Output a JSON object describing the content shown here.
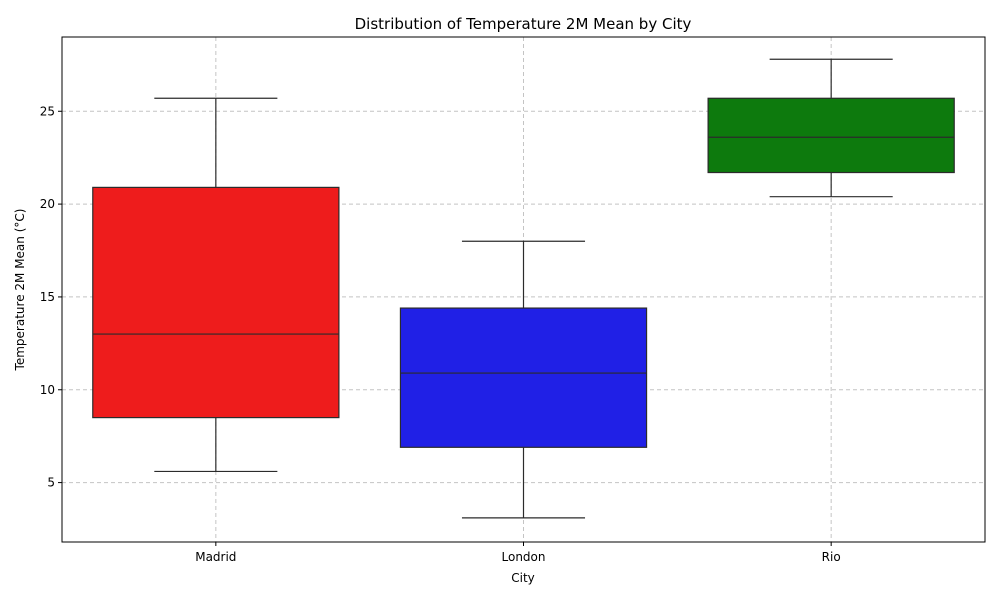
{
  "chart_data": {
    "type": "box",
    "title": "Distribution of Temperature 2M Mean by City",
    "xlabel": "City",
    "ylabel": "Temperature 2M Mean (°C)",
    "ylim": [
      1.8,
      29.0
    ],
    "yticks": [
      5,
      10,
      15,
      20,
      25
    ],
    "grid": true,
    "categories": [
      "Madrid",
      "London",
      "Rio"
    ],
    "series": [
      {
        "category": "Madrid",
        "color": "#ee1c1c",
        "min": 5.6,
        "q1": 8.5,
        "median": 13.0,
        "q3": 20.9,
        "max": 25.7
      },
      {
        "category": "London",
        "color": "#2020e6",
        "min": 3.1,
        "q1": 6.9,
        "median": 10.9,
        "q3": 14.4,
        "max": 18.0
      },
      {
        "category": "Rio",
        "color": "#0d7a0d",
        "min": 20.4,
        "q1": 21.7,
        "median": 23.6,
        "q3": 25.7,
        "max": 27.8
      }
    ]
  }
}
